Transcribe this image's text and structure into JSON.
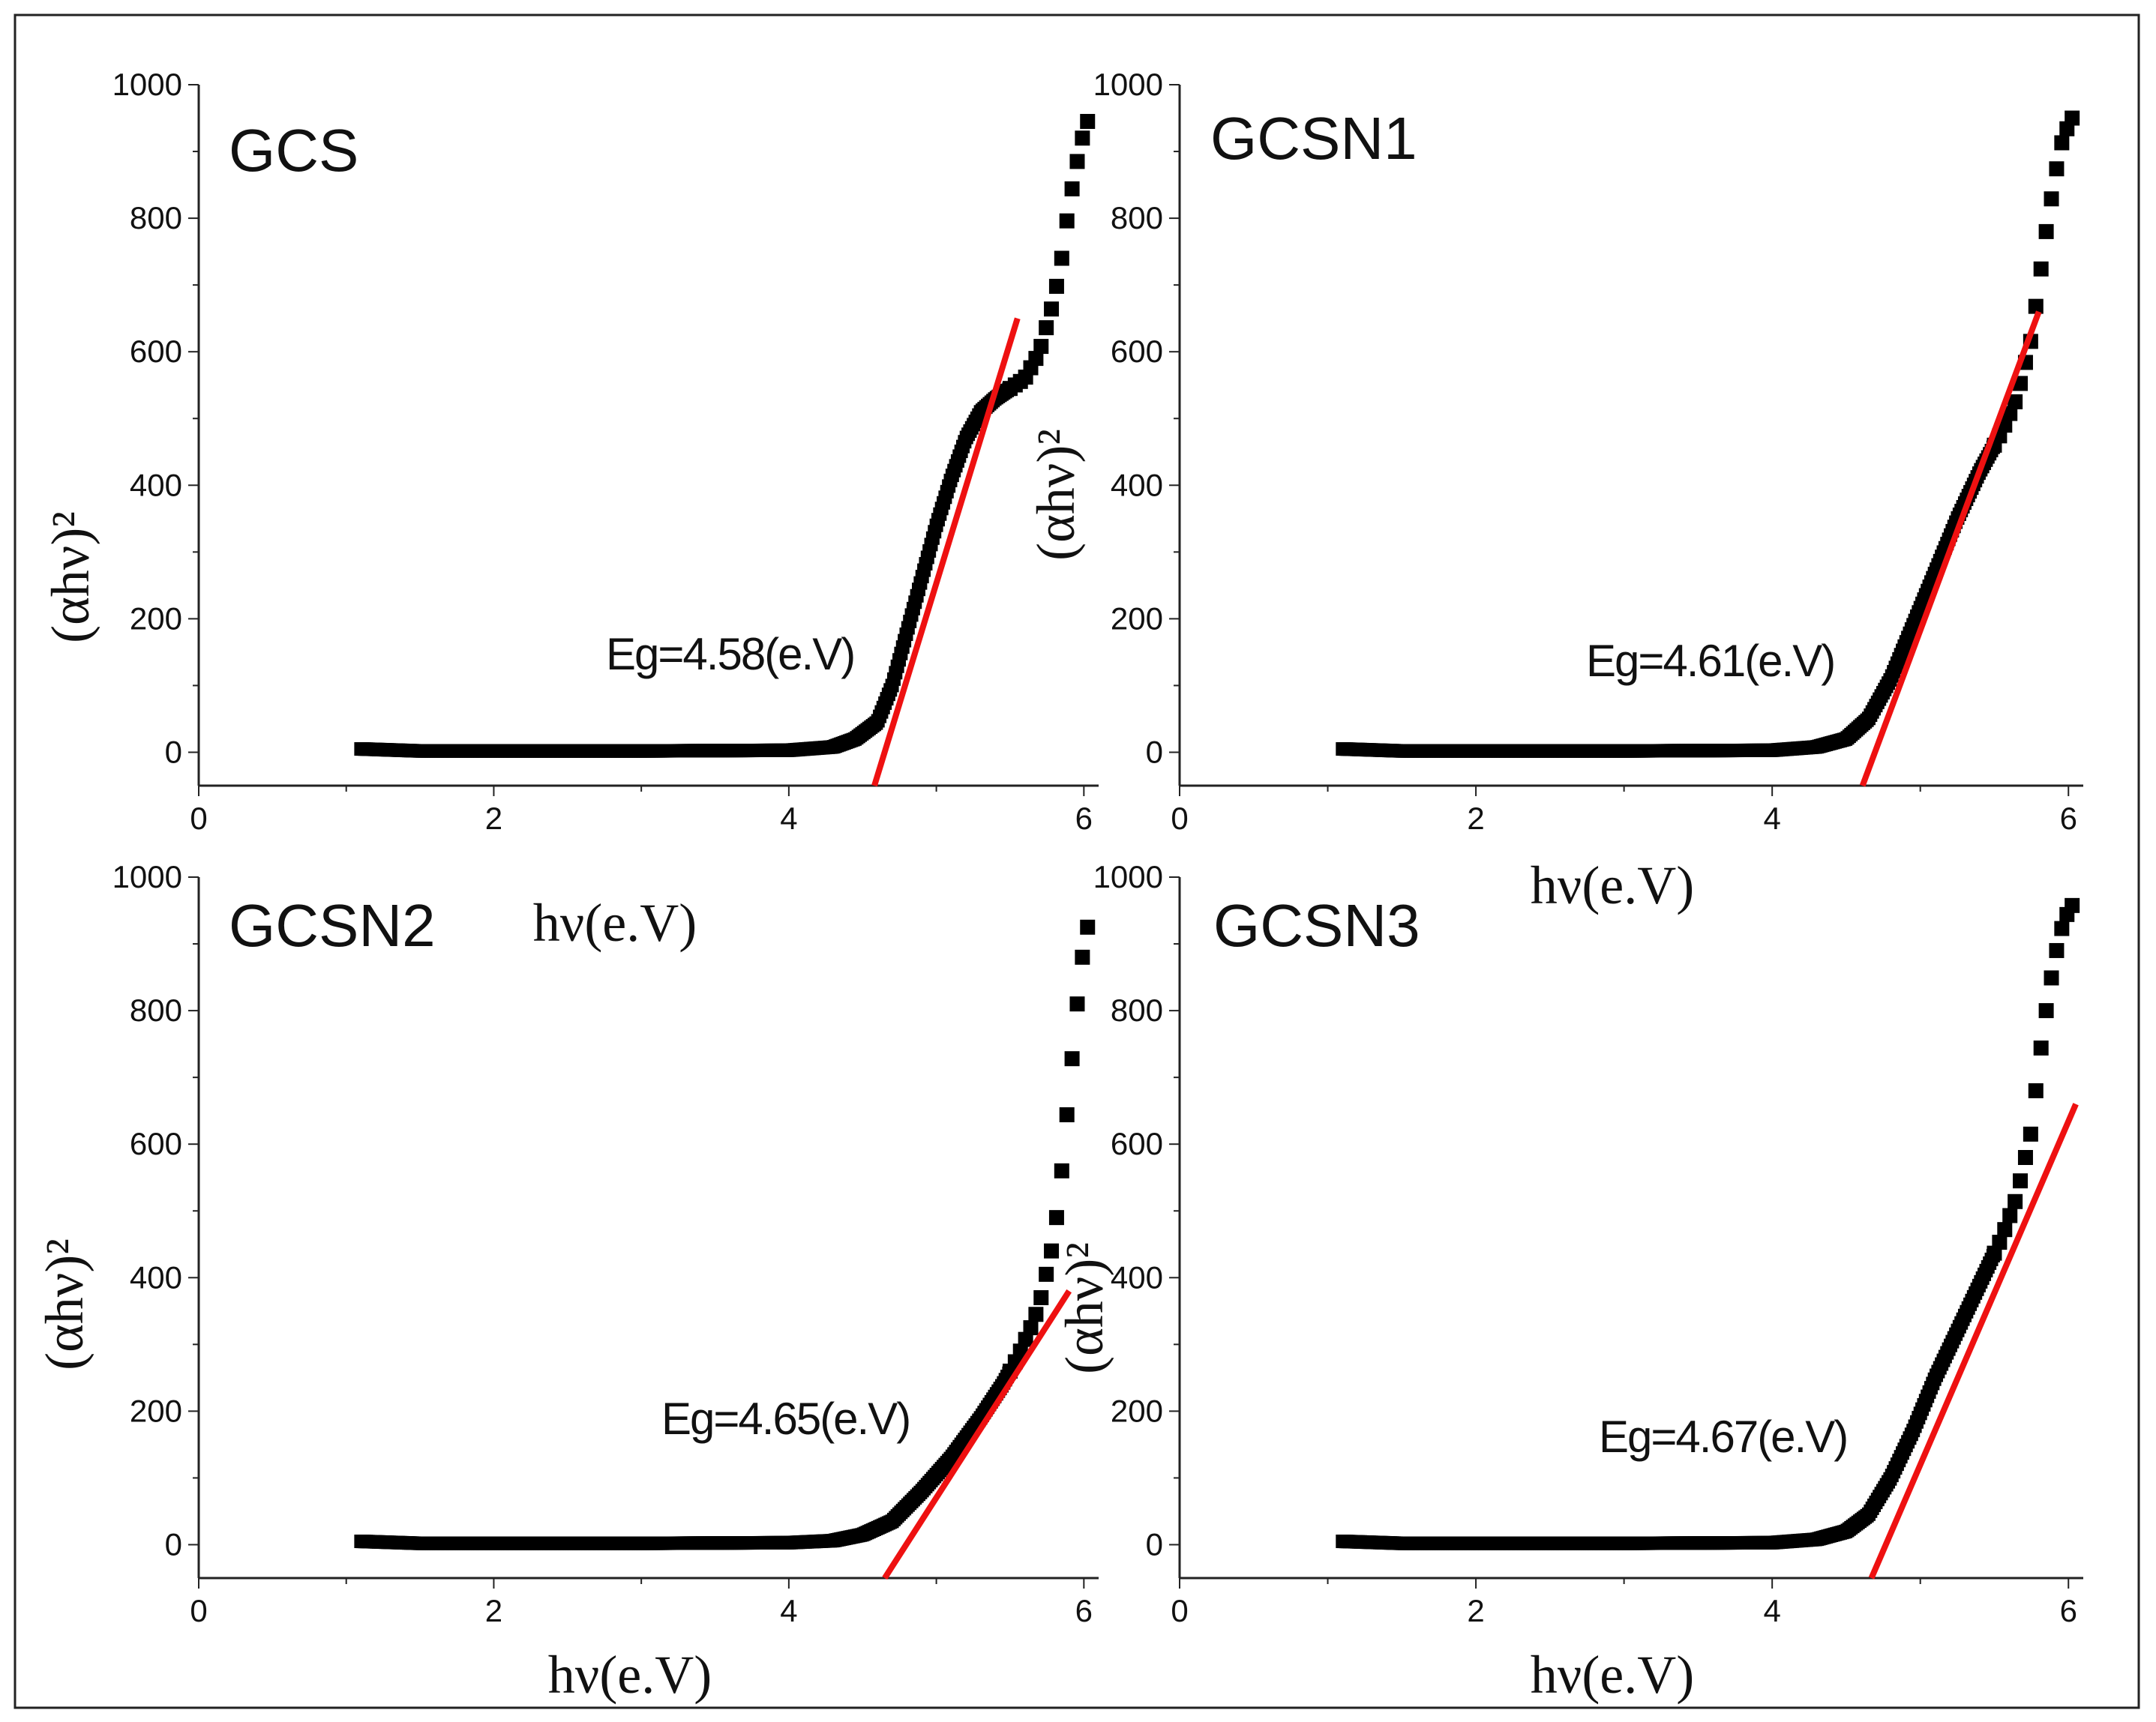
{
  "chart_data": [
    {
      "type": "scatter",
      "title": "GCS",
      "xlabel": "hν(e.V)",
      "ylabel": "(αhν)²",
      "xlim": [
        0,
        6.1
      ],
      "ylim": [
        -50,
        1000
      ],
      "xticks": [
        "0",
        "2",
        "4",
        "6"
      ],
      "yticks": [
        "0",
        "200",
        "400",
        "600",
        "800",
        "1000"
      ],
      "annotation": "Eg=4.58(e.V)",
      "series": [
        {
          "name": "data",
          "x": [
            1.1,
            1.5,
            2.0,
            3.0,
            4.0,
            4.3,
            4.45,
            4.6,
            4.7,
            4.8,
            4.9,
            5.0,
            5.1,
            5.2,
            5.3,
            5.4,
            5.5,
            5.6,
            5.7,
            5.8,
            5.85,
            5.9,
            5.95,
            6.0,
            6.05
          ],
          "y": [
            5,
            2,
            2,
            2,
            3,
            8,
            20,
            45,
            100,
            180,
            260,
            340,
            410,
            470,
            510,
            530,
            545,
            560,
            600,
            680,
            740,
            820,
            880,
            930,
            960
          ]
        },
        {
          "name": "fit",
          "x": [
            4.58,
            5.55
          ],
          "y": [
            -50,
            650
          ]
        }
      ]
    },
    {
      "type": "scatter",
      "title": "GCSN1",
      "xlabel": "hν(e.V)",
      "ylabel": "(αhν)²",
      "xlim": [
        0,
        6.1
      ],
      "ylim": [
        -50,
        1000
      ],
      "xticks": [
        "0",
        "2",
        "4",
        "6"
      ],
      "yticks": [
        "0",
        "200",
        "400",
        "600",
        "800",
        "1000"
      ],
      "annotation": "Eg=4.61(e.V)",
      "series": [
        {
          "name": "data",
          "x": [
            1.1,
            1.5,
            2.0,
            3.0,
            4.0,
            4.3,
            4.5,
            4.65,
            4.8,
            4.95,
            5.1,
            5.25,
            5.4,
            5.55,
            5.65,
            5.75,
            5.8,
            5.85,
            5.9,
            5.95,
            6.0,
            6.05
          ],
          "y": [
            5,
            2,
            2,
            2,
            3,
            8,
            20,
            50,
            110,
            190,
            270,
            350,
            420,
            480,
            530,
            620,
            700,
            780,
            850,
            910,
            940,
            960
          ]
        },
        {
          "name": "fit",
          "x": [
            4.61,
            5.8
          ],
          "y": [
            -50,
            660
          ]
        }
      ]
    },
    {
      "type": "scatter",
      "title": "GCSN2",
      "xlabel": "hν(e.V)",
      "ylabel": "(αhν)²",
      "xlim": [
        0,
        6.1
      ],
      "ylim": [
        -50,
        1000
      ],
      "xticks": [
        "0",
        "2",
        "4",
        "6"
      ],
      "yticks": [
        "0",
        "200",
        "400",
        "600",
        "800",
        "1000"
      ],
      "annotation": "Eg=4.65(e.V)",
      "series": [
        {
          "name": "data",
          "x": [
            1.1,
            1.5,
            2.0,
            3.0,
            4.0,
            4.3,
            4.5,
            4.7,
            4.9,
            5.1,
            5.3,
            5.45,
            5.55,
            5.65,
            5.7,
            5.75,
            5.8,
            5.85,
            5.9,
            5.95,
            6.0,
            6.05
          ],
          "y": [
            5,
            2,
            2,
            2,
            3,
            6,
            15,
            35,
            80,
            130,
            190,
            240,
            280,
            330,
            360,
            410,
            460,
            560,
            680,
            800,
            900,
            950
          ]
        },
        {
          "name": "fit",
          "x": [
            4.65,
            5.9
          ],
          "y": [
            -50,
            380
          ]
        }
      ]
    },
    {
      "type": "scatter",
      "title": "GCSN3",
      "xlabel": "hν(e.V)",
      "ylabel": "(αhν)²",
      "xlim": [
        0,
        6.1
      ],
      "ylim": [
        -50,
        1000
      ],
      "xticks": [
        "0",
        "2",
        "4",
        "6"
      ],
      "yticks": [
        "0",
        "200",
        "400",
        "600",
        "800",
        "1000"
      ],
      "annotation": "Eg=4.67(e.V)",
      "series": [
        {
          "name": "data",
          "x": [
            1.1,
            1.5,
            2.0,
            3.0,
            4.0,
            4.3,
            4.5,
            4.65,
            4.8,
            4.95,
            5.1,
            5.25,
            5.4,
            5.55,
            5.65,
            5.75,
            5.8,
            5.85,
            5.9,
            5.95,
            6.0,
            6.05
          ],
          "y": [
            5,
            2,
            2,
            2,
            3,
            8,
            20,
            45,
            100,
            170,
            250,
            320,
            390,
            460,
            520,
            620,
            720,
            800,
            870,
            920,
            950,
            965
          ]
        },
        {
          "name": "fit",
          "x": [
            4.67,
            6.05
          ],
          "y": [
            -50,
            660
          ]
        }
      ]
    }
  ]
}
